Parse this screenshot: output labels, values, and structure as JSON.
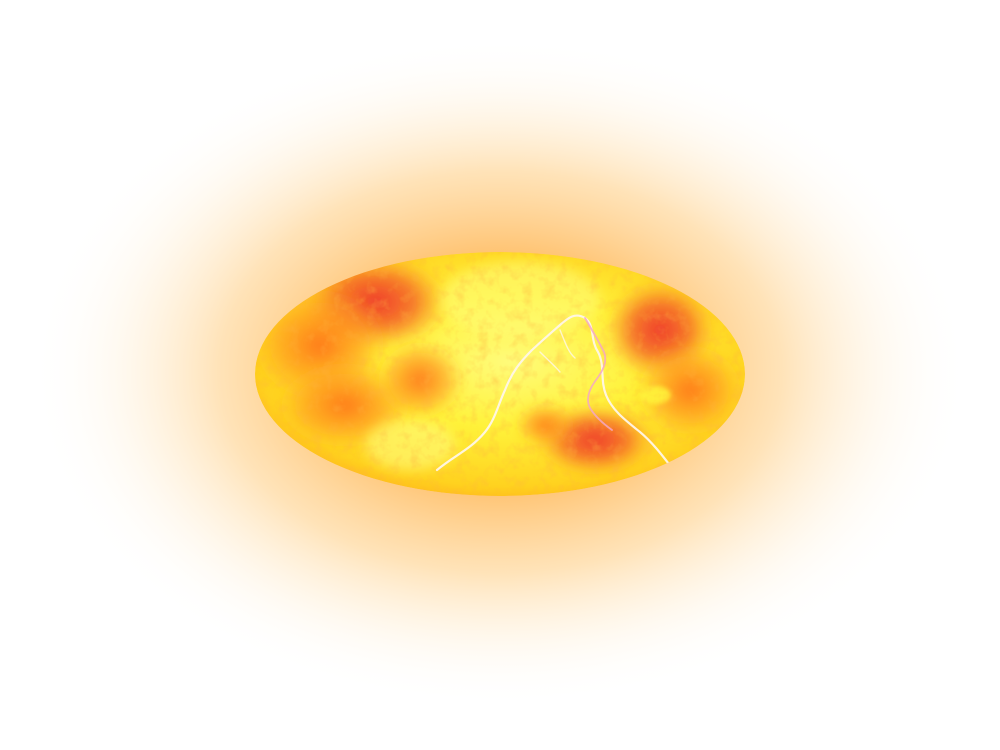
{
  "image": {
    "subject": "glowing-ellipse-mosaic",
    "colors": {
      "background": "#ffffff",
      "glow_outer": "#fff6e6",
      "glow_mid": "#ffd79a",
      "glow_inner": "#ffb84d",
      "core_yellow": "#fff23a",
      "core_bright": "#fffb7a",
      "orange": "#ff9a1f",
      "deep_orange": "#ff6a1a",
      "red": "#f2362c",
      "lightning": "#fff6e8",
      "lightning_pink": "#f4a7c4"
    }
  }
}
